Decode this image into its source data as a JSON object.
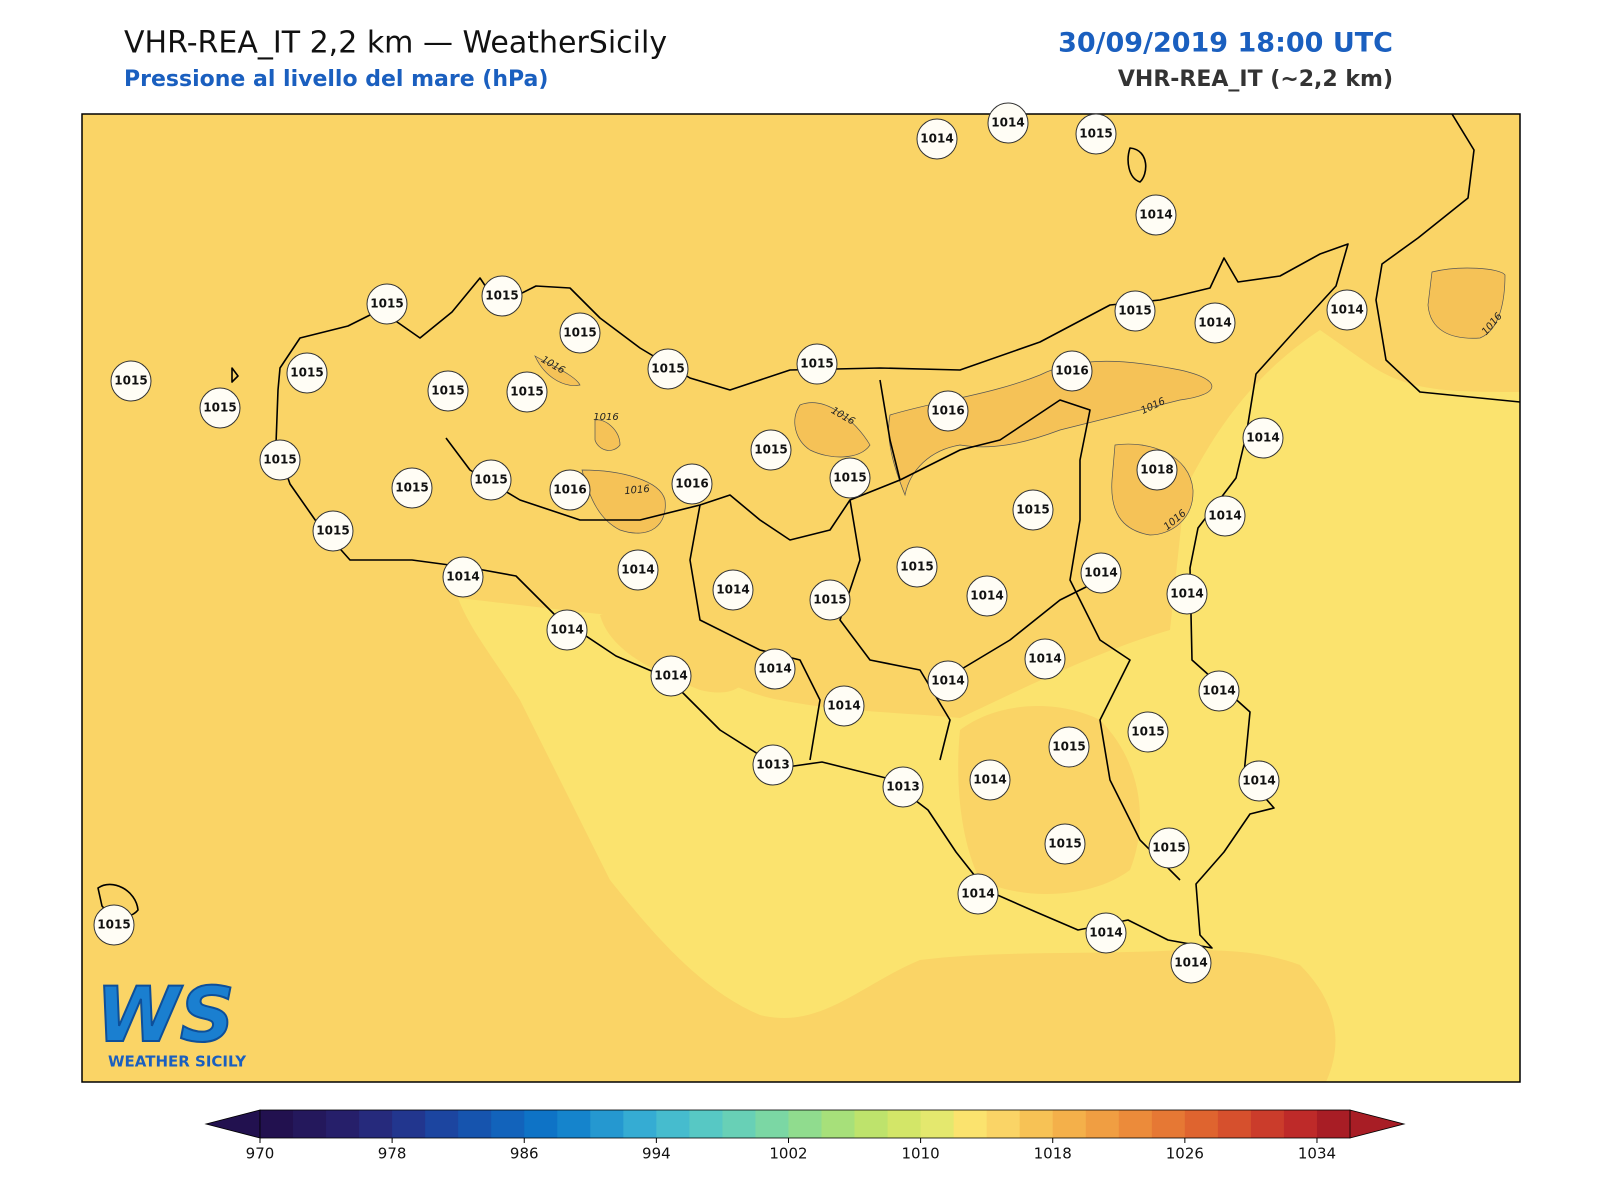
{
  "header": {
    "title": "VHR-REA_IT 2,2 km — WeatherSicily",
    "subtitle": "Pressione al livello del mare (hPa)",
    "datetime": "30/09/2019 18:00 UTC",
    "model": "VHR-REA_IT (~2,2 km)"
  },
  "logo": {
    "mark": "WS",
    "text": "WEATHER SICILY"
  },
  "stations": [
    1014,
    1014,
    1015,
    1014,
    1015,
    1015,
    1015,
    1015,
    1015,
    1015,
    1015,
    1015,
    1015,
    1015,
    1015,
    1014,
    1014,
    1016,
    1016,
    1014,
    1015,
    1015,
    1018,
    1015,
    1015,
    1016,
    1016,
    1015,
    1015,
    1014,
    1015,
    1014,
    1014,
    1015,
    1014,
    1015,
    1014,
    1014,
    1014,
    1014,
    1014,
    1014,
    1014,
    1014,
    1014,
    1014,
    1015,
    1015,
    1013,
    1013,
    1014,
    1014,
    1015,
    1015,
    1014,
    1014,
    1014,
    1015
  ],
  "contour_labels": [
    1016,
    1016,
    1016,
    1016,
    1016,
    1016,
    1016
  ],
  "colorbar": {
    "lim": [
      970,
      1036
    ],
    "ticks": [
      970,
      978,
      986,
      994,
      1002,
      1010,
      1018,
      1026,
      1034
    ],
    "colors": [
      "#22114f",
      "#24185c",
      "#261f6a",
      "#262a7c",
      "#22368e",
      "#1c45a0",
      "#1654ae",
      "#1263bb",
      "#0e73c6",
      "#1584cc",
      "#2598d0",
      "#35acd3",
      "#46bcce",
      "#57c8c4",
      "#68d0b6",
      "#7bd7a4",
      "#90dc8e",
      "#a7e07a",
      "#bee36c",
      "#d3e668",
      "#e4e86e",
      "#fbe36e",
      "#fad466",
      "#f7c255",
      "#f4b04a",
      "#f09e42",
      "#ec8b3a",
      "#e67834",
      "#df642f",
      "#d6502d",
      "#cb3c2b",
      "#be2a29",
      "#a81d25"
    ]
  }
}
